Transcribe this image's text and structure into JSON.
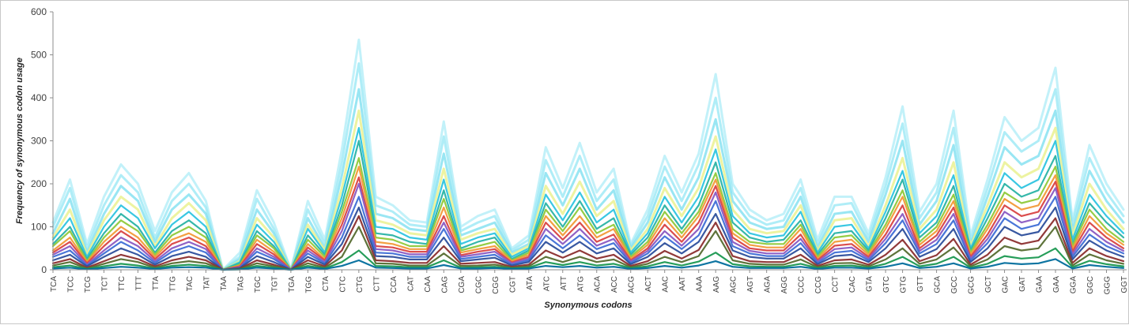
{
  "chart_data": {
    "type": "line",
    "title": "",
    "xlabel": "Synonymous codons",
    "ylabel": "Frequency of synonymous codon usage",
    "ylim": [
      0,
      600
    ],
    "yticks": [
      0,
      100,
      200,
      300,
      400,
      500,
      600
    ],
    "grid": false,
    "legend": "none",
    "categories": [
      "TCA",
      "TCC",
      "TCG",
      "TCT",
      "TTC",
      "TTT",
      "TTA",
      "TTG",
      "TAC",
      "TAT",
      "TAA",
      "TAG",
      "TGC",
      "TGT",
      "TGA",
      "TGG",
      "CTA",
      "CTC",
      "CTG",
      "CTT",
      "CCA",
      "CAT",
      "CAA",
      "CAG",
      "CGA",
      "CGC",
      "CGG",
      "CGT",
      "ATA",
      "ATC",
      "ATT",
      "ATG",
      "ACA",
      "ACC",
      "ACG",
      "ACT",
      "AAC",
      "AAT",
      "AAA",
      "AAG",
      "AGC",
      "AGT",
      "AGA",
      "AGG",
      "CCC",
      "CCG",
      "CCT",
      "CAC",
      "GTA",
      "GTC",
      "GTG",
      "GTT",
      "GCA",
      "GCC",
      "GCG",
      "GCT",
      "GAC",
      "GAT",
      "GAA",
      "GAA",
      "GGA",
      "GGC",
      "GGG",
      "GGT"
    ],
    "series": [
      {
        "values": [
          110,
          210,
          60,
          170,
          245,
          200,
          90,
          180,
          225,
          160,
          0,
          40,
          185,
          110,
          0,
          160,
          70,
          280,
          535,
          170,
          150,
          115,
          110,
          345,
          100,
          125,
          140,
          50,
          80,
          285,
          190,
          295,
          180,
          235,
          60,
          140,
          265,
          180,
          270,
          455,
          200,
          140,
          115,
          130,
          210,
          70,
          170,
          170,
          85,
          215,
          380,
          135,
          200,
          370,
          80,
          210,
          355,
          300,
          330,
          470,
          115,
          290,
          200,
          140
        ],
        "color": "#b3eef7"
      },
      {
        "values": [
          100,
          190,
          50,
          150,
          220,
          180,
          75,
          160,
          200,
          145,
          0,
          30,
          165,
          95,
          0,
          140,
          60,
          250,
          480,
          150,
          135,
          105,
          100,
          310,
          90,
          110,
          125,
          45,
          70,
          255,
          170,
          265,
          160,
          210,
          55,
          125,
          240,
          160,
          245,
          400,
          180,
          125,
          105,
          115,
          190,
          60,
          150,
          155,
          75,
          195,
          340,
          120,
          180,
          330,
          70,
          190,
          320,
          275,
          300,
          420,
          105,
          260,
          180,
          125
        ],
        "color": "#9be8f5"
      },
      {
        "values": [
          85,
          165,
          40,
          130,
          195,
          160,
          65,
          140,
          175,
          130,
          0,
          25,
          140,
          85,
          0,
          120,
          50,
          220,
          420,
          130,
          120,
          95,
          90,
          270,
          80,
          95,
          110,
          40,
          60,
          225,
          150,
          235,
          140,
          185,
          50,
          110,
          215,
          140,
          215,
          350,
          160,
          110,
          95,
          100,
          170,
          50,
          130,
          135,
          65,
          175,
          300,
          105,
          160,
          290,
          60,
          170,
          285,
          245,
          265,
          370,
          90,
          230,
          160,
          110
        ],
        "color": "#7fe0f0"
      },
      {
        "values": [
          75,
          140,
          35,
          115,
          170,
          140,
          55,
          120,
          155,
          115,
          0,
          20,
          120,
          75,
          0,
          105,
          45,
          190,
          370,
          115,
          105,
          85,
          80,
          235,
          70,
          85,
          95,
          35,
          55,
          195,
          130,
          205,
          125,
          160,
          45,
          95,
          190,
          125,
          190,
          310,
          140,
          95,
          85,
          90,
          150,
          45,
          115,
          120,
          55,
          150,
          260,
          95,
          140,
          250,
          55,
          150,
          250,
          215,
          235,
          330,
          80,
          200,
          140,
          95
        ],
        "color": "#e8f08a"
      },
      {
        "values": [
          70,
          120,
          30,
          100,
          150,
          120,
          50,
          105,
          135,
          100,
          0,
          18,
          105,
          65,
          0,
          95,
          40,
          170,
          330,
          100,
          95,
          75,
          70,
          210,
          60,
          75,
          85,
          30,
          50,
          175,
          115,
          180,
          110,
          140,
          40,
          85,
          170,
          110,
          170,
          280,
          125,
          85,
          75,
          80,
          135,
          40,
          100,
          105,
          50,
          135,
          230,
          85,
          125,
          220,
          50,
          135,
          225,
          190,
          210,
          300,
          70,
          175,
          125,
          85
        ],
        "color": "#2ec4e0"
      },
      {
        "values": [
          60,
          100,
          25,
          85,
          130,
          100,
          40,
          90,
          115,
          85,
          0,
          15,
          90,
          55,
          0,
          80,
          35,
          150,
          300,
          85,
          80,
          65,
          60,
          185,
          50,
          65,
          75,
          25,
          45,
          155,
          100,
          160,
          95,
          120,
          35,
          75,
          150,
          95,
          150,
          250,
          110,
          75,
          65,
          70,
          115,
          35,
          85,
          90,
          45,
          120,
          210,
          75,
          110,
          195,
          45,
          120,
          200,
          170,
          185,
          265,
          60,
          155,
          110,
          75
        ],
        "color": "#2ab3a5"
      },
      {
        "values": [
          55,
          90,
          20,
          75,
          115,
          90,
          35,
          80,
          100,
          75,
          0,
          12,
          80,
          50,
          0,
          70,
          30,
          135,
          260,
          75,
          70,
          55,
          55,
          165,
          45,
          55,
          65,
          22,
          40,
          140,
          90,
          145,
          85,
          105,
          30,
          65,
          135,
          85,
          135,
          225,
          95,
          65,
          60,
          60,
          105,
          30,
          75,
          80,
          40,
          105,
          185,
          65,
          100,
          175,
          40,
          105,
          180,
          155,
          165,
          240,
          55,
          140,
          95,
          65
        ],
        "color": "#8fc93a"
      },
      {
        "values": [
          45,
          75,
          18,
          65,
          100,
          75,
          30,
          70,
          85,
          65,
          0,
          10,
          70,
          42,
          0,
          60,
          25,
          120,
          240,
          65,
          60,
          48,
          48,
          145,
          40,
          48,
          55,
          20,
          35,
          125,
          80,
          125,
          75,
          95,
          26,
          58,
          120,
          75,
          125,
          210,
          85,
          58,
          52,
          52,
          95,
          26,
          65,
          70,
          35,
          95,
          170,
          58,
          90,
          160,
          35,
          95,
          165,
          140,
          150,
          220,
          48,
          125,
          85,
          58
        ],
        "color": "#f29a38"
      },
      {
        "values": [
          40,
          65,
          15,
          55,
          90,
          65,
          25,
          60,
          75,
          55,
          0,
          8,
          60,
          36,
          0,
          52,
          22,
          105,
          215,
          55,
          52,
          42,
          42,
          125,
          34,
          42,
          48,
          17,
          30,
          110,
          70,
          110,
          65,
          82,
          22,
          50,
          105,
          65,
          110,
          195,
          75,
          50,
          45,
          45,
          82,
          22,
          56,
          60,
          30,
          82,
          150,
          50,
          80,
          145,
          30,
          82,
          150,
          125,
          135,
          205,
          42,
          110,
          75,
          50
        ],
        "color": "#d94343"
      },
      {
        "values": [
          35,
          55,
          12,
          45,
          75,
          55,
          20,
          50,
          65,
          48,
          0,
          6,
          50,
          30,
          0,
          45,
          18,
          90,
          200,
          48,
          45,
          36,
          36,
          110,
          30,
          36,
          42,
          15,
          26,
          95,
          60,
          95,
          56,
          72,
          19,
          44,
          90,
          56,
          95,
          180,
          65,
          44,
          38,
          38,
          72,
          19,
          48,
          52,
          26,
          72,
          130,
          44,
          70,
          130,
          26,
          72,
          135,
          110,
          120,
          190,
          36,
          95,
          65,
          44
        ],
        "color": "#8a5ac2"
      },
      {
        "values": [
          30,
          45,
          10,
          38,
          65,
          45,
          16,
          42,
          55,
          40,
          0,
          5,
          42,
          25,
          0,
          38,
          15,
          75,
          170,
          40,
          38,
          30,
          30,
          95,
          25,
          30,
          35,
          12,
          22,
          80,
          50,
          80,
          48,
          62,
          16,
          38,
          78,
          48,
          80,
          160,
          55,
          38,
          32,
          32,
          62,
          16,
          40,
          44,
          22,
          62,
          115,
          38,
          60,
          115,
          22,
          62,
          120,
          95,
          105,
          170,
          30,
          82,
          55,
          38
        ],
        "color": "#3f6fd6"
      },
      {
        "values": [
          22,
          35,
          8,
          30,
          50,
          35,
          12,
          32,
          42,
          30,
          0,
          4,
          32,
          18,
          0,
          30,
          12,
          60,
          145,
          32,
          30,
          24,
          24,
          75,
          20,
          24,
          28,
          10,
          18,
          65,
          40,
          65,
          38,
          50,
          13,
          30,
          62,
          38,
          65,
          130,
          45,
          30,
          26,
          26,
          50,
          13,
          32,
          35,
          18,
          50,
          95,
          30,
          48,
          95,
          18,
          50,
          100,
          80,
          88,
          145,
          24,
          68,
          45,
          30
        ],
        "color": "#2d4f9c"
      },
      {
        "values": [
          15,
          25,
          5,
          20,
          35,
          25,
          8,
          22,
          30,
          22,
          0,
          3,
          22,
          12,
          0,
          22,
          8,
          45,
          125,
          22,
          20,
          16,
          16,
          55,
          14,
          16,
          18,
          7,
          12,
          45,
          28,
          45,
          26,
          35,
          9,
          20,
          44,
          26,
          46,
          110,
          32,
          20,
          18,
          18,
          35,
          9,
          22,
          24,
          12,
          35,
          70,
          20,
          34,
          72,
          12,
          35,
          75,
          60,
          68,
          120,
          16,
          50,
          32,
          20
        ],
        "color": "#8b2e2e"
      },
      {
        "values": [
          10,
          18,
          3,
          14,
          25,
          18,
          5,
          15,
          20,
          15,
          0,
          2,
          15,
          8,
          0,
          15,
          5,
          30,
          100,
          15,
          14,
          10,
          10,
          38,
          9,
          10,
          12,
          5,
          8,
          30,
          18,
          30,
          18,
          24,
          6,
          14,
          30,
          18,
          32,
          90,
          22,
          14,
          12,
          12,
          24,
          6,
          15,
          16,
          8,
          24,
          50,
          14,
          24,
          52,
          8,
          24,
          55,
          45,
          50,
          100,
          10,
          36,
          22,
          14
        ],
        "color": "#556b2f"
      },
      {
        "values": [
          6,
          10,
          2,
          8,
          14,
          10,
          3,
          9,
          12,
          9,
          0,
          1,
          9,
          5,
          0,
          9,
          3,
          18,
          45,
          9,
          8,
          6,
          6,
          22,
          5,
          6,
          7,
          3,
          5,
          18,
          11,
          18,
          10,
          14,
          4,
          8,
          18,
          10,
          19,
          40,
          13,
          8,
          7,
          7,
          14,
          4,
          9,
          10,
          5,
          14,
          30,
          8,
          14,
          30,
          5,
          14,
          32,
          26,
          29,
          50,
          6,
          21,
          13,
          8
        ],
        "color": "#1a9850"
      },
      {
        "values": [
          3,
          5,
          1,
          4,
          7,
          5,
          2,
          5,
          6,
          5,
          0,
          1,
          5,
          3,
          0,
          5,
          2,
          9,
          22,
          5,
          4,
          3,
          3,
          11,
          3,
          3,
          4,
          2,
          3,
          9,
          6,
          9,
          5,
          7,
          2,
          4,
          9,
          5,
          10,
          20,
          7,
          4,
          4,
          4,
          7,
          2,
          5,
          5,
          3,
          7,
          15,
          4,
          7,
          15,
          3,
          7,
          16,
          13,
          15,
          25,
          3,
          11,
          7,
          4
        ],
        "color": "#006d9c"
      }
    ]
  }
}
